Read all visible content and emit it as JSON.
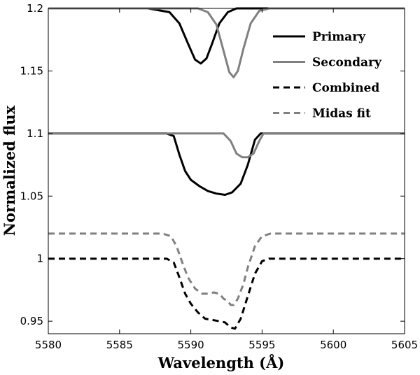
{
  "chart_data": {
    "type": "line",
    "title": "",
    "xlabel": "Wavelength (Å)",
    "ylabel": "Normalized flux",
    "xlim": [
      5580,
      5605
    ],
    "ylim": [
      0.94,
      1.2
    ],
    "xticks": [
      5580,
      5585,
      5590,
      5595,
      5600,
      5605
    ],
    "xtick_labels": [
      "5580",
      "5585",
      "5590",
      "5595",
      "5600",
      "5605"
    ],
    "yticks": [
      0.95,
      1.0,
      1.05,
      1.1,
      1.15,
      1.2
    ],
    "ytick_labels": [
      "0.95",
      "1",
      "1.05",
      "1.1",
      "1.15",
      "1.2"
    ],
    "grid": false,
    "legend_position": "top-right",
    "legend": [
      {
        "label": "Primary",
        "color": "#000000",
        "dash": "solid"
      },
      {
        "label": "Secondary",
        "color": "#808080",
        "dash": "solid"
      },
      {
        "label": "Combined",
        "color": "#000000",
        "dash": "dashed"
      },
      {
        "label": "Midas fit",
        "color": "#808080",
        "dash": "dashed"
      }
    ],
    "series": [
      {
        "name": "Primary (upper panel)",
        "color": "#000000",
        "dash": "solid",
        "x": [
          5580,
          5587.0,
          5588.5,
          5589.2,
          5589.8,
          5590.3,
          5590.7,
          5591.1,
          5591.5,
          5592.0,
          5592.6,
          5593.2,
          5594.0,
          5605
        ],
        "y": [
          1.2,
          1.2,
          1.197,
          1.188,
          1.172,
          1.159,
          1.156,
          1.16,
          1.172,
          1.188,
          1.197,
          1.2,
          1.2,
          1.2
        ]
      },
      {
        "name": "Secondary (upper panel)",
        "color": "#808080",
        "dash": "solid",
        "x": [
          5580,
          5590.5,
          5591.2,
          5591.8,
          5592.3,
          5592.7,
          5593.0,
          5593.3,
          5593.7,
          5594.2,
          5594.8,
          5595.5,
          5605
        ],
        "y": [
          1.2,
          1.2,
          1.197,
          1.187,
          1.166,
          1.149,
          1.145,
          1.15,
          1.168,
          1.188,
          1.198,
          1.2,
          1.2
        ]
      },
      {
        "name": "Primary (middle panel)",
        "color": "#000000",
        "dash": "solid",
        "x": [
          5580,
          5588.3,
          5588.8,
          5589.2,
          5589.6,
          5590.0,
          5590.6,
          5591.2,
          5591.8,
          5592.4,
          5592.9,
          5593.5,
          5594.0,
          5594.5,
          5594.9,
          5605
        ],
        "y": [
          1.1,
          1.1,
          1.098,
          1.083,
          1.07,
          1.063,
          1.058,
          1.054,
          1.052,
          1.051,
          1.053,
          1.06,
          1.075,
          1.095,
          1.1,
          1.1
        ]
      },
      {
        "name": "Secondary (middle panel)",
        "color": "#808080",
        "dash": "solid",
        "x": [
          5580,
          5592.3,
          5592.8,
          5593.2,
          5593.6,
          5594.0,
          5594.4,
          5594.8,
          5595.1,
          5605
        ],
        "y": [
          1.1,
          1.1,
          1.094,
          1.084,
          1.081,
          1.081,
          1.084,
          1.094,
          1.1,
          1.1
        ]
      },
      {
        "name": "Midas fit",
        "color": "#808080",
        "dash": "dashed",
        "x": [
          5580,
          5588.0,
          5588.6,
          5589.0,
          5589.4,
          5589.8,
          5590.3,
          5590.8,
          5591.2,
          5591.6,
          5592.0,
          5592.3,
          5592.6,
          5592.8,
          5593.0,
          5593.3,
          5593.7,
          5594.0,
          5594.5,
          5595.0,
          5595.6,
          5605
        ],
        "y": [
          1.02,
          1.02,
          1.018,
          1.01,
          0.997,
          0.985,
          0.976,
          0.972,
          0.972,
          0.973,
          0.972,
          0.968,
          0.966,
          0.963,
          0.963,
          0.968,
          0.98,
          0.993,
          1.01,
          1.018,
          1.02,
          1.02
        ]
      },
      {
        "name": "Combined",
        "color": "#000000",
        "dash": "dashed",
        "x": [
          5580,
          5588.3,
          5588.8,
          5589.2,
          5589.6,
          5590.0,
          5590.5,
          5591.0,
          5591.5,
          5592.0,
          5592.4,
          5592.8,
          5593.1,
          5593.5,
          5594.0,
          5594.5,
          5595.0,
          5595.5,
          5605
        ],
        "y": [
          1.0,
          1.0,
          0.997,
          0.985,
          0.972,
          0.964,
          0.957,
          0.952,
          0.951,
          0.95,
          0.949,
          0.945,
          0.944,
          0.952,
          0.97,
          0.988,
          0.998,
          1.0,
          1.0
        ]
      }
    ]
  }
}
